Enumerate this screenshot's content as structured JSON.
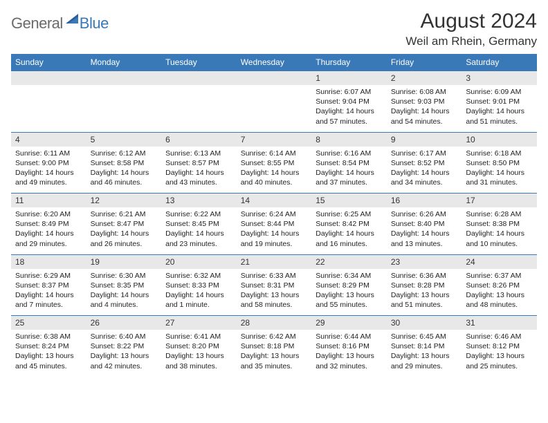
{
  "brand": {
    "general": "General",
    "blue": "Blue"
  },
  "title": "August 2024",
  "location": "Weil am Rhein, Germany",
  "colors": {
    "header_bg": "#3a79b7",
    "header_text": "#ffffff",
    "daynum_bg": "#e8e8e8",
    "border": "#3a79b7",
    "text": "#222222",
    "logo_gray": "#6b6b6b",
    "logo_blue": "#3a79b7"
  },
  "weekdays": [
    "Sunday",
    "Monday",
    "Tuesday",
    "Wednesday",
    "Thursday",
    "Friday",
    "Saturday"
  ],
  "weeks": [
    {
      "nums": [
        "",
        "",
        "",
        "",
        "1",
        "2",
        "3"
      ],
      "cells": [
        {},
        {},
        {},
        {},
        {
          "sunrise": "Sunrise: 6:07 AM",
          "sunset": "Sunset: 9:04 PM",
          "daylight": "Daylight: 14 hours and 57 minutes."
        },
        {
          "sunrise": "Sunrise: 6:08 AM",
          "sunset": "Sunset: 9:03 PM",
          "daylight": "Daylight: 14 hours and 54 minutes."
        },
        {
          "sunrise": "Sunrise: 6:09 AM",
          "sunset": "Sunset: 9:01 PM",
          "daylight": "Daylight: 14 hours and 51 minutes."
        }
      ]
    },
    {
      "nums": [
        "4",
        "5",
        "6",
        "7",
        "8",
        "9",
        "10"
      ],
      "cells": [
        {
          "sunrise": "Sunrise: 6:11 AM",
          "sunset": "Sunset: 9:00 PM",
          "daylight": "Daylight: 14 hours and 49 minutes."
        },
        {
          "sunrise": "Sunrise: 6:12 AM",
          "sunset": "Sunset: 8:58 PM",
          "daylight": "Daylight: 14 hours and 46 minutes."
        },
        {
          "sunrise": "Sunrise: 6:13 AM",
          "sunset": "Sunset: 8:57 PM",
          "daylight": "Daylight: 14 hours and 43 minutes."
        },
        {
          "sunrise": "Sunrise: 6:14 AM",
          "sunset": "Sunset: 8:55 PM",
          "daylight": "Daylight: 14 hours and 40 minutes."
        },
        {
          "sunrise": "Sunrise: 6:16 AM",
          "sunset": "Sunset: 8:54 PM",
          "daylight": "Daylight: 14 hours and 37 minutes."
        },
        {
          "sunrise": "Sunrise: 6:17 AM",
          "sunset": "Sunset: 8:52 PM",
          "daylight": "Daylight: 14 hours and 34 minutes."
        },
        {
          "sunrise": "Sunrise: 6:18 AM",
          "sunset": "Sunset: 8:50 PM",
          "daylight": "Daylight: 14 hours and 31 minutes."
        }
      ]
    },
    {
      "nums": [
        "11",
        "12",
        "13",
        "14",
        "15",
        "16",
        "17"
      ],
      "cells": [
        {
          "sunrise": "Sunrise: 6:20 AM",
          "sunset": "Sunset: 8:49 PM",
          "daylight": "Daylight: 14 hours and 29 minutes."
        },
        {
          "sunrise": "Sunrise: 6:21 AM",
          "sunset": "Sunset: 8:47 PM",
          "daylight": "Daylight: 14 hours and 26 minutes."
        },
        {
          "sunrise": "Sunrise: 6:22 AM",
          "sunset": "Sunset: 8:45 PM",
          "daylight": "Daylight: 14 hours and 23 minutes."
        },
        {
          "sunrise": "Sunrise: 6:24 AM",
          "sunset": "Sunset: 8:44 PM",
          "daylight": "Daylight: 14 hours and 19 minutes."
        },
        {
          "sunrise": "Sunrise: 6:25 AM",
          "sunset": "Sunset: 8:42 PM",
          "daylight": "Daylight: 14 hours and 16 minutes."
        },
        {
          "sunrise": "Sunrise: 6:26 AM",
          "sunset": "Sunset: 8:40 PM",
          "daylight": "Daylight: 14 hours and 13 minutes."
        },
        {
          "sunrise": "Sunrise: 6:28 AM",
          "sunset": "Sunset: 8:38 PM",
          "daylight": "Daylight: 14 hours and 10 minutes."
        }
      ]
    },
    {
      "nums": [
        "18",
        "19",
        "20",
        "21",
        "22",
        "23",
        "24"
      ],
      "cells": [
        {
          "sunrise": "Sunrise: 6:29 AM",
          "sunset": "Sunset: 8:37 PM",
          "daylight": "Daylight: 14 hours and 7 minutes."
        },
        {
          "sunrise": "Sunrise: 6:30 AM",
          "sunset": "Sunset: 8:35 PM",
          "daylight": "Daylight: 14 hours and 4 minutes."
        },
        {
          "sunrise": "Sunrise: 6:32 AM",
          "sunset": "Sunset: 8:33 PM",
          "daylight": "Daylight: 14 hours and 1 minute."
        },
        {
          "sunrise": "Sunrise: 6:33 AM",
          "sunset": "Sunset: 8:31 PM",
          "daylight": "Daylight: 13 hours and 58 minutes."
        },
        {
          "sunrise": "Sunrise: 6:34 AM",
          "sunset": "Sunset: 8:29 PM",
          "daylight": "Daylight: 13 hours and 55 minutes."
        },
        {
          "sunrise": "Sunrise: 6:36 AM",
          "sunset": "Sunset: 8:28 PM",
          "daylight": "Daylight: 13 hours and 51 minutes."
        },
        {
          "sunrise": "Sunrise: 6:37 AM",
          "sunset": "Sunset: 8:26 PM",
          "daylight": "Daylight: 13 hours and 48 minutes."
        }
      ]
    },
    {
      "nums": [
        "25",
        "26",
        "27",
        "28",
        "29",
        "30",
        "31"
      ],
      "cells": [
        {
          "sunrise": "Sunrise: 6:38 AM",
          "sunset": "Sunset: 8:24 PM",
          "daylight": "Daylight: 13 hours and 45 minutes."
        },
        {
          "sunrise": "Sunrise: 6:40 AM",
          "sunset": "Sunset: 8:22 PM",
          "daylight": "Daylight: 13 hours and 42 minutes."
        },
        {
          "sunrise": "Sunrise: 6:41 AM",
          "sunset": "Sunset: 8:20 PM",
          "daylight": "Daylight: 13 hours and 38 minutes."
        },
        {
          "sunrise": "Sunrise: 6:42 AM",
          "sunset": "Sunset: 8:18 PM",
          "daylight": "Daylight: 13 hours and 35 minutes."
        },
        {
          "sunrise": "Sunrise: 6:44 AM",
          "sunset": "Sunset: 8:16 PM",
          "daylight": "Daylight: 13 hours and 32 minutes."
        },
        {
          "sunrise": "Sunrise: 6:45 AM",
          "sunset": "Sunset: 8:14 PM",
          "daylight": "Daylight: 13 hours and 29 minutes."
        },
        {
          "sunrise": "Sunrise: 6:46 AM",
          "sunset": "Sunset: 8:12 PM",
          "daylight": "Daylight: 13 hours and 25 minutes."
        }
      ]
    }
  ]
}
